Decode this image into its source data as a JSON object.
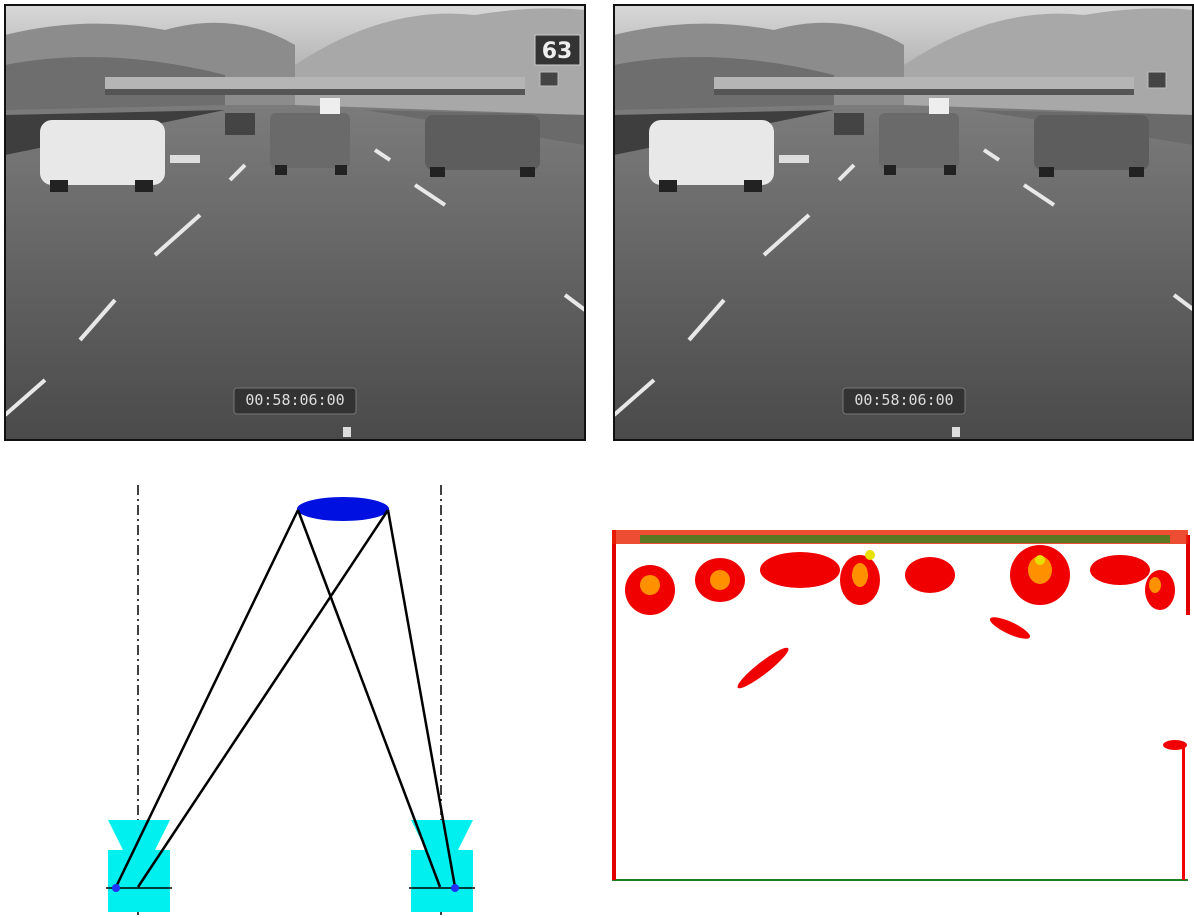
{
  "images": [
    {
      "speed_sign": "63",
      "timecode": "00:58:06:00"
    },
    {
      "timecode": "00:58:06:00"
    }
  ]
}
